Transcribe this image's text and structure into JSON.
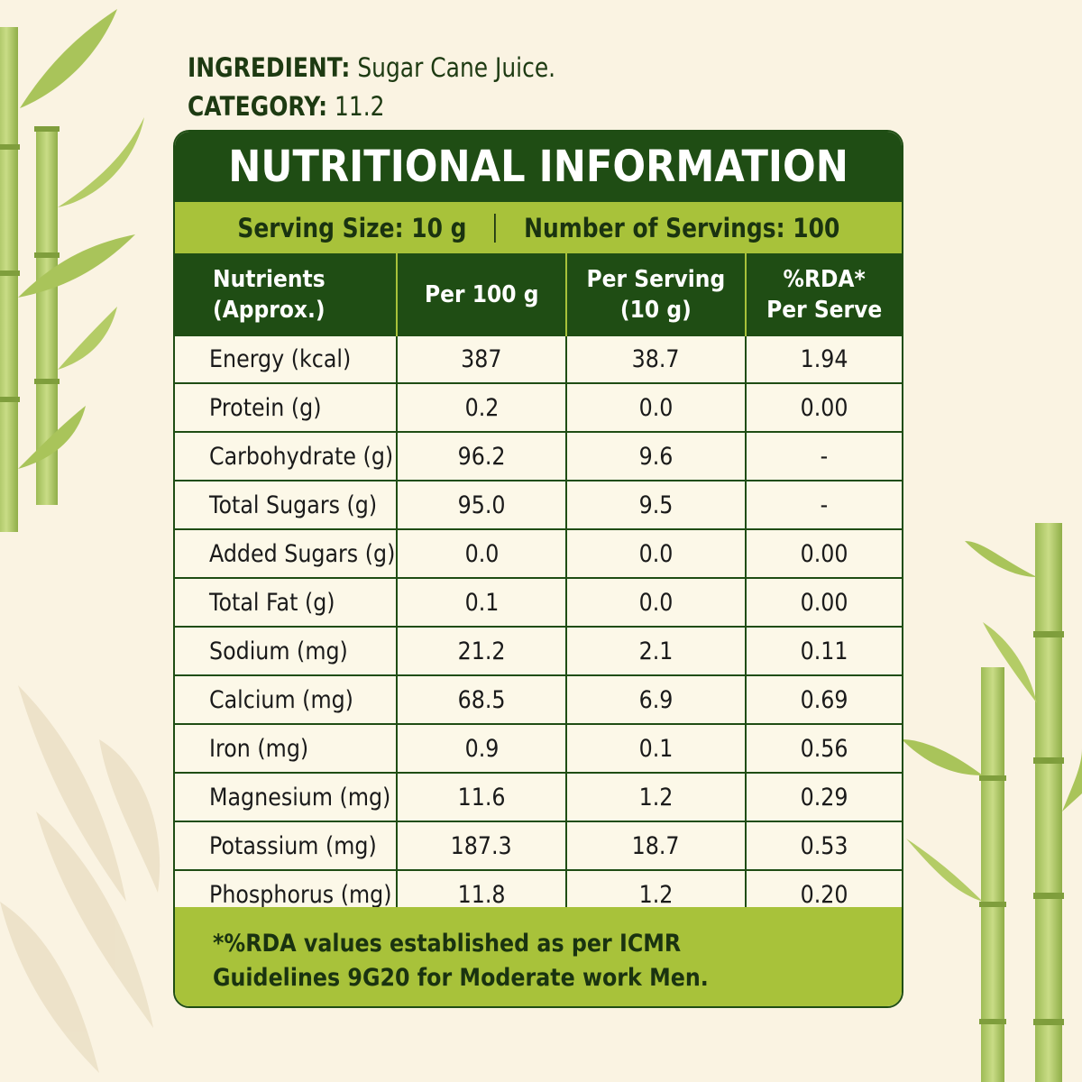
{
  "meta": {
    "ingredient_label": "INGREDIENT:",
    "ingredient_value": "Sugar Cane Juice.",
    "category_label": "CATEGORY:",
    "category_value": "11.2"
  },
  "panel": {
    "title": "NUTRITIONAL INFORMATION",
    "serving_size": "Serving Size: 10 g",
    "servings": "Number of Servings: 100",
    "headers": [
      "Nutrients\n(Approx.)",
      "Per 100 g",
      "Per Serving\n(10 g)",
      "%RDA*\nPer Serve"
    ],
    "rows": [
      {
        "nutrient": "Energy (kcal)",
        "per100": "387",
        "perServing": "38.7",
        "rda": "1.94"
      },
      {
        "nutrient": "Protein (g)",
        "per100": "0.2",
        "perServing": "0.0",
        "rda": "0.00"
      },
      {
        "nutrient": "Carbohydrate (g)",
        "per100": "96.2",
        "perServing": "9.6",
        "rda": "-"
      },
      {
        "nutrient": "Total Sugars (g)",
        "per100": "95.0",
        "perServing": "9.5",
        "rda": "-"
      },
      {
        "nutrient": "Added Sugars (g)",
        "per100": "0.0",
        "perServing": "0.0",
        "rda": "0.00"
      },
      {
        "nutrient": "Total Fat (g)",
        "per100": "0.1",
        "perServing": "0.0",
        "rda": "0.00"
      },
      {
        "nutrient": "Sodium (mg)",
        "per100": "21.2",
        "perServing": "2.1",
        "rda": "0.11"
      },
      {
        "nutrient": "Calcium (mg)",
        "per100": "68.5",
        "perServing": "6.9",
        "rda": "0.69"
      },
      {
        "nutrient": "Iron (mg)",
        "per100": "0.9",
        "perServing": "0.1",
        "rda": "0.56"
      },
      {
        "nutrient": "Magnesium (mg)",
        "per100": "11.6",
        "perServing": "1.2",
        "rda": "0.29"
      },
      {
        "nutrient": "Potassium (mg)",
        "per100": "187.3",
        "perServing": "18.7",
        "rda": "0.53"
      },
      {
        "nutrient": "Phosphorus (mg)",
        "per100": "11.8",
        "perServing": "1.2",
        "rda": "0.20"
      }
    ],
    "footnote": "*%RDA values established as per ICMR\nGuidelines 9G20 for Moderate work Men."
  },
  "colors": {
    "dark_green": "#1f4d14",
    "light_green": "#a8c23a",
    "background": "#faf3e2",
    "panel_fill": "#fcf8e8"
  },
  "decor": {
    "left_art": "sugarcane-stalks-icon",
    "right_art": "sugarcane-stalks-icon"
  }
}
